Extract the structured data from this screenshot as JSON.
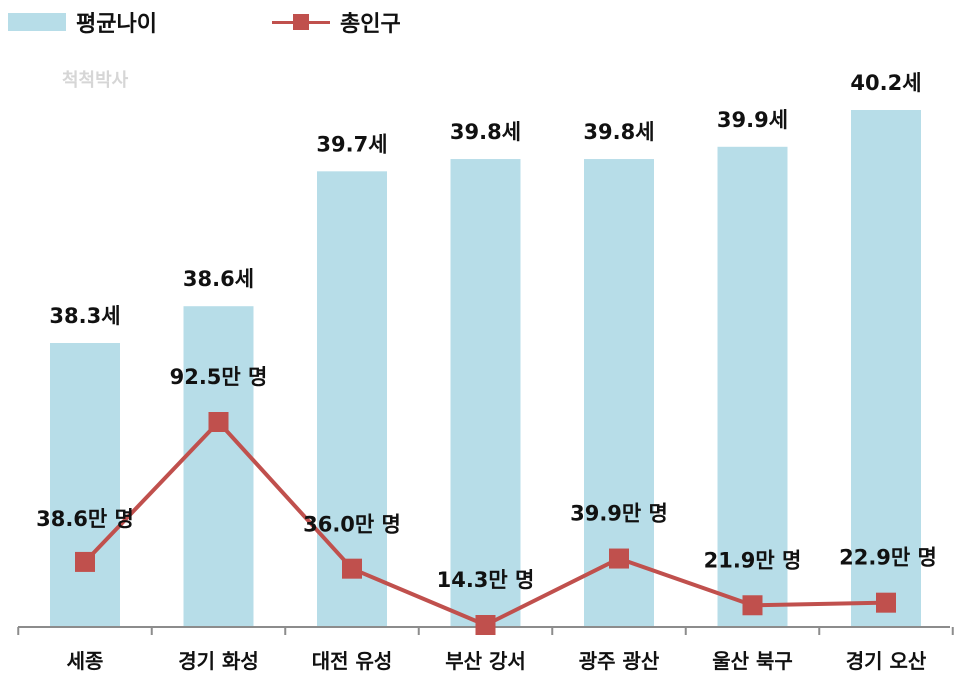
{
  "legend": {
    "bar_label": "평균나이",
    "line_label": "총인구"
  },
  "watermark": "척척박사",
  "colors": {
    "bar": "#b7dde8",
    "line": "#c0504d",
    "axis": "#8c8c8c"
  },
  "chart_data": {
    "type": "bar",
    "categories": [
      "세종",
      "경기 화성",
      "대전 유성",
      "부산 강서",
      "광주 광산",
      "울산 북구",
      "경기 오산"
    ],
    "series": [
      {
        "name": "평균나이",
        "type": "bar",
        "values": [
          38.3,
          38.6,
          39.7,
          39.8,
          39.8,
          39.9,
          40.2
        ],
        "labels": [
          "38.3세",
          "38.6세",
          "39.7세",
          "39.8세",
          "39.8세",
          "39.9세",
          "40.2세"
        ]
      },
      {
        "name": "총인구",
        "type": "line",
        "values": [
          38.6,
          92.5,
          36.0,
          14.3,
          39.9,
          21.9,
          22.9
        ],
        "labels": [
          "38.6만 명",
          "92.5만 명",
          "36.0만 명",
          "14.3만 명",
          "39.9만 명",
          "21.9만 명",
          "22.9만 명"
        ]
      }
    ],
    "grid": false,
    "legend_position": "top-left"
  }
}
